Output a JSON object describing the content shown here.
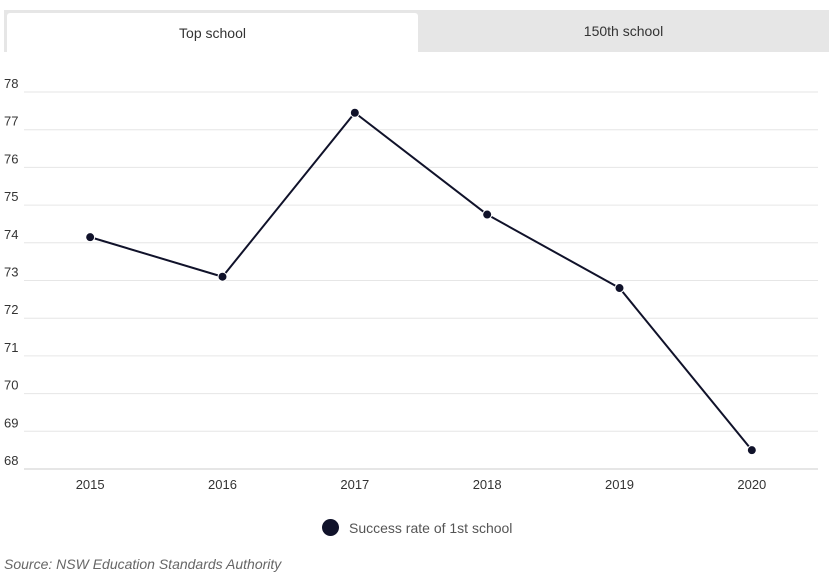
{
  "tabs": [
    {
      "label": "Top school",
      "active": true
    },
    {
      "label": "150th school",
      "active": false
    }
  ],
  "chart_data": {
    "type": "line",
    "x": [
      "2015",
      "2016",
      "2017",
      "2018",
      "2019",
      "2020"
    ],
    "series": [
      {
        "name": "Success rate of 1st school",
        "values": [
          74.15,
          73.1,
          77.45,
          74.75,
          72.8,
          68.5
        ],
        "color": "#10122a"
      }
    ],
    "yticks": [
      68,
      69,
      70,
      71,
      72,
      73,
      74,
      75,
      76,
      77,
      78
    ],
    "ylim": [
      68,
      78
    ],
    "grid": true,
    "legend_position": "bottom-center"
  },
  "source": "Source: NSW Education Standards Authority"
}
